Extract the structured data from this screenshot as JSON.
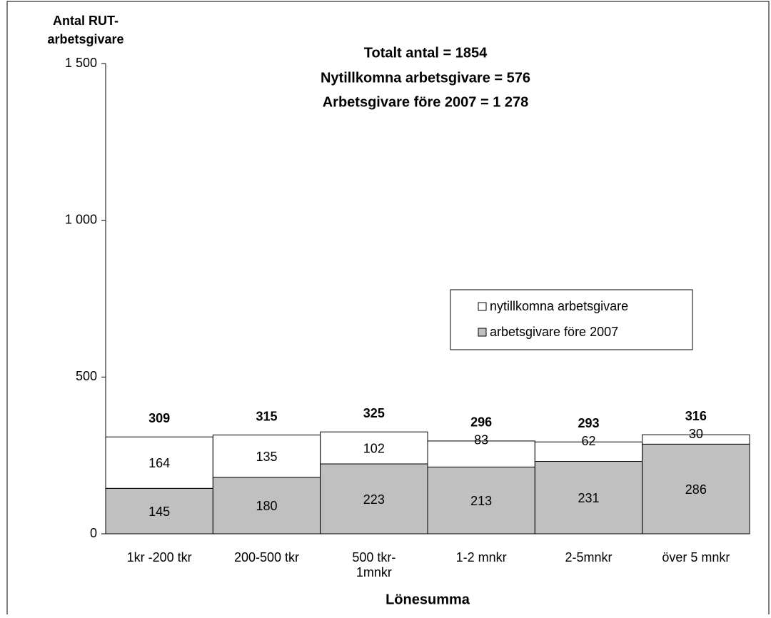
{
  "chart_data": {
    "type": "stacked_bar",
    "title": [
      "Totalt antal = 1854",
      "Nytillkomna arbetsgivare = 576",
      "Arbetsgivare före 2007 = 1 278"
    ],
    "y_label": [
      "Antal RUT-",
      "arbetsgivare"
    ],
    "x_label": "Lönesumma",
    "categories": [
      [
        "1kr -200 tkr"
      ],
      [
        "200-500 tkr"
      ],
      [
        "500 tkr-",
        "1mnkr"
      ],
      [
        "1-2 mnkr"
      ],
      [
        "2-5mnkr"
      ],
      [
        "över 5 mnkr"
      ]
    ],
    "series": [
      {
        "name": "arbetsgivare före 2007",
        "color": "#c0c0c0",
        "values": [
          145,
          180,
          223,
          213,
          231,
          286
        ]
      },
      {
        "name": "nytillkomna arbetsgivare",
        "color": "#ffffff",
        "values": [
          164,
          135,
          102,
          83,
          62,
          30
        ]
      }
    ],
    "totals": [
      309,
      315,
      325,
      296,
      293,
      316
    ],
    "ylim": [
      0,
      1500
    ],
    "yticks": [
      0,
      500,
      {
        "value": 1000,
        "label": "1 000"
      },
      {
        "value": 1500,
        "label": "1 500"
      }
    ],
    "legend": "right"
  }
}
